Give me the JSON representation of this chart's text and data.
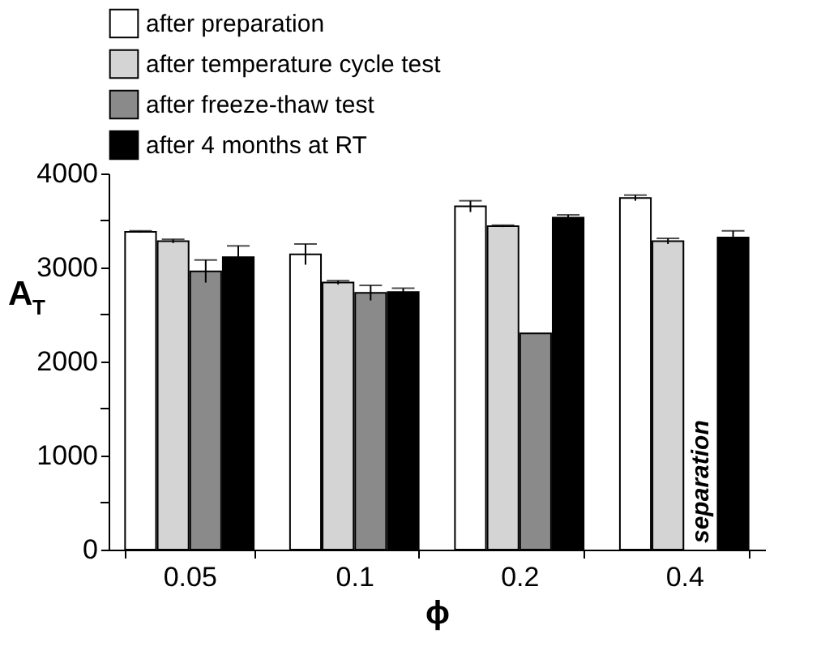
{
  "chart_data": {
    "type": "bar",
    "xlabel": "ϕ",
    "ylabel": "A$_{T}$",
    "categories": [
      "0.05",
      "0.1",
      "0.2",
      "0.4"
    ],
    "series": [
      {
        "name": "after preparation",
        "color": "#ffffff",
        "values": [
          3380,
          3140,
          3650,
          3740
        ],
        "errors": [
          10,
          110,
          60,
          30
        ]
      },
      {
        "name": "after temperature cycle test",
        "color": "#d4d4d4",
        "values": [
          3280,
          2840,
          3440,
          3280
        ],
        "errors": [
          20,
          20,
          10,
          30
        ]
      },
      {
        "name": "after freeze-thaw test",
        "color": "#8a8a8a",
        "values": [
          2960,
          2730,
          2300,
          null
        ],
        "errors": [
          120,
          80,
          null,
          null
        ]
      },
      {
        "name": "after 4 months at RT",
        "color": "#000000",
        "values": [
          3110,
          2740,
          3530,
          3320
        ],
        "errors": [
          120,
          40,
          30,
          70
        ]
      }
    ],
    "ylim": [
      0,
      4000
    ],
    "yticks": [
      0,
      {
        "value": 500,
        "label": null
      },
      1000,
      {
        "value": 1500,
        "label": null
      },
      2000,
      {
        "value": 2500,
        "label": null
      },
      3000,
      {
        "value": 3500,
        "label": null
      },
      4000
    ],
    "grid": false,
    "legend": "top left",
    "annotations": [
      {
        "text": "separation",
        "x": "0.4",
        "y": 0
      }
    ]
  }
}
